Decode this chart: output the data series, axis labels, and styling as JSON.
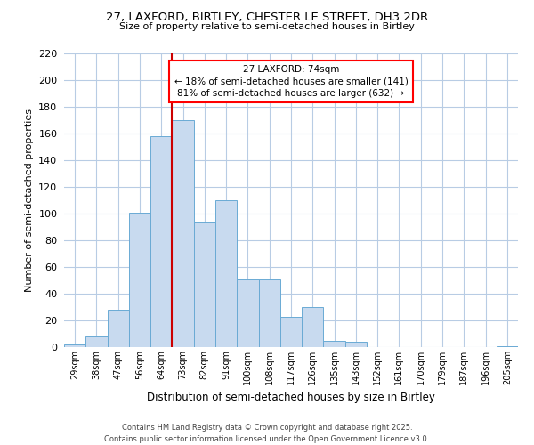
{
  "title_line1": "27, LAXFORD, BIRTLEY, CHESTER LE STREET, DH3 2DR",
  "title_line2": "Size of property relative to semi-detached houses in Birtley",
  "bar_labels": [
    "29sqm",
    "38sqm",
    "47sqm",
    "56sqm",
    "64sqm",
    "73sqm",
    "82sqm",
    "91sqm",
    "100sqm",
    "108sqm",
    "117sqm",
    "126sqm",
    "135sqm",
    "143sqm",
    "152sqm",
    "161sqm",
    "170sqm",
    "179sqm",
    "187sqm",
    "196sqm",
    "205sqm"
  ],
  "bar_values": [
    2,
    8,
    28,
    101,
    158,
    170,
    94,
    110,
    51,
    51,
    23,
    30,
    5,
    4,
    0,
    0,
    0,
    0,
    0,
    0,
    1
  ],
  "bar_color": "#c8daef",
  "bar_edge_color": "#6aaad4",
  "vline_color": "#cc0000",
  "ylabel": "Number of semi-detached properties",
  "xlabel": "Distribution of semi-detached houses by size in Birtley",
  "ylim": [
    0,
    220
  ],
  "yticks": [
    0,
    20,
    40,
    60,
    80,
    100,
    120,
    140,
    160,
    180,
    200,
    220
  ],
  "annotation_title": "27 LAXFORD: 74sqm",
  "annotation_line1": "← 18% of semi-detached houses are smaller (141)",
  "annotation_line2": "81% of semi-detached houses are larger (632) →",
  "footer_line1": "Contains HM Land Registry data © Crown copyright and database right 2025.",
  "footer_line2": "Contains public sector information licensed under the Open Government Licence v3.0.",
  "background_color": "#ffffff",
  "grid_color": "#b8cce4"
}
